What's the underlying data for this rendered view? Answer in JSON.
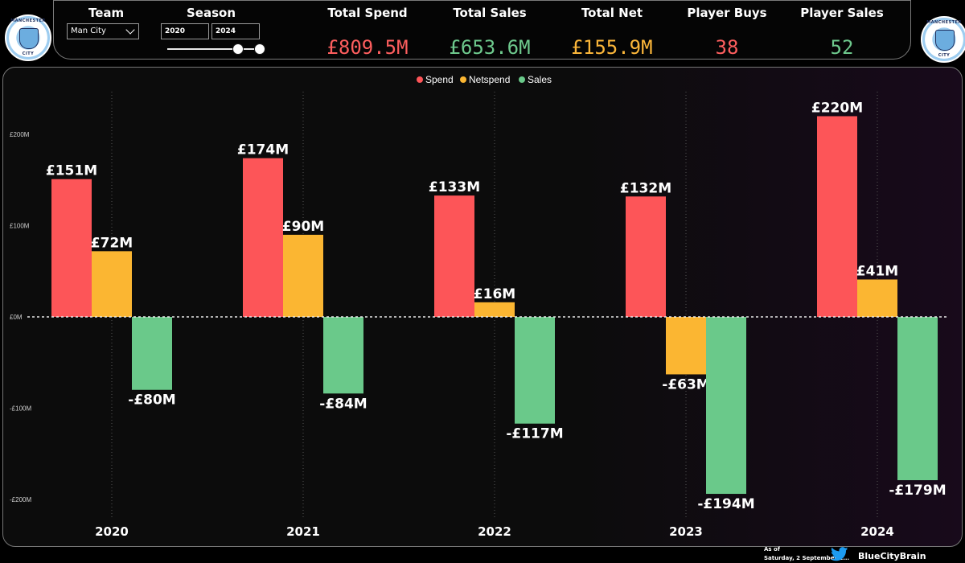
{
  "header": {
    "team_label": "Team",
    "team_value": "Man City",
    "season_label": "Season",
    "season_from": "2020",
    "season_to": "2024",
    "slider_range": [
      2020,
      2024
    ],
    "kpis": [
      {
        "label": "Total Spend",
        "value": "£809.5M",
        "color": "#fd5e5e"
      },
      {
        "label": "Total Sales",
        "value": "£653.6M",
        "color": "#6ec98d"
      },
      {
        "label": "Total Net",
        "value": "£155.9M",
        "color": "#fbb63a"
      },
      {
        "label": "Player Buys",
        "value": "38",
        "color": "#fd5e5e"
      },
      {
        "label": "Player Sales",
        "value": "52",
        "color": "#6ec98d"
      }
    ]
  },
  "logos": {
    "left_name": "manchester-city-crest",
    "right_name": "manchester-city-crest",
    "ring_top": "MANCHESTER",
    "ring_bottom": "CITY"
  },
  "chart_data": {
    "type": "bar",
    "categories": [
      "2020",
      "2021",
      "2022",
      "2023",
      "2024"
    ],
    "series": [
      {
        "name": "Spend",
        "color": "#fd5558",
        "values": [
          151,
          174,
          133,
          132,
          220
        ],
        "labels": [
          "£151M",
          "£174M",
          "£133M",
          "£132M",
          "£220M"
        ]
      },
      {
        "name": "Netspend",
        "color": "#fbb632",
        "values": [
          72,
          90,
          16,
          -63,
          41
        ],
        "labels": [
          "£72M",
          "£90M",
          "£16M",
          "-£63M",
          "£41M"
        ]
      },
      {
        "name": "Sales",
        "color": "#6ac98a",
        "values": [
          -80,
          -84,
          -117,
          -194,
          -179
        ],
        "labels": [
          "-£80M",
          "-£84M",
          "-£117M",
          "-£194M",
          "-£179M"
        ]
      }
    ],
    "yticks": [
      {
        "value": 200,
        "label": "£200M"
      },
      {
        "value": 100,
        "label": "£100M"
      },
      {
        "value": 0,
        "label": "£0M"
      },
      {
        "value": -100,
        "label": "-£100M"
      },
      {
        "value": -200,
        "label": "-£200M"
      }
    ],
    "ylim": [
      -215,
      240
    ],
    "legend_position": "top-center",
    "grid": "vertical dotted",
    "zero_line": "dashed"
  },
  "footer": {
    "as_of_label": "As of",
    "date_text": "Saturday, 2 September 2...",
    "twitter_handle": "BlueCityBrain",
    "twitter_icon": "twitter-bird-icon"
  }
}
